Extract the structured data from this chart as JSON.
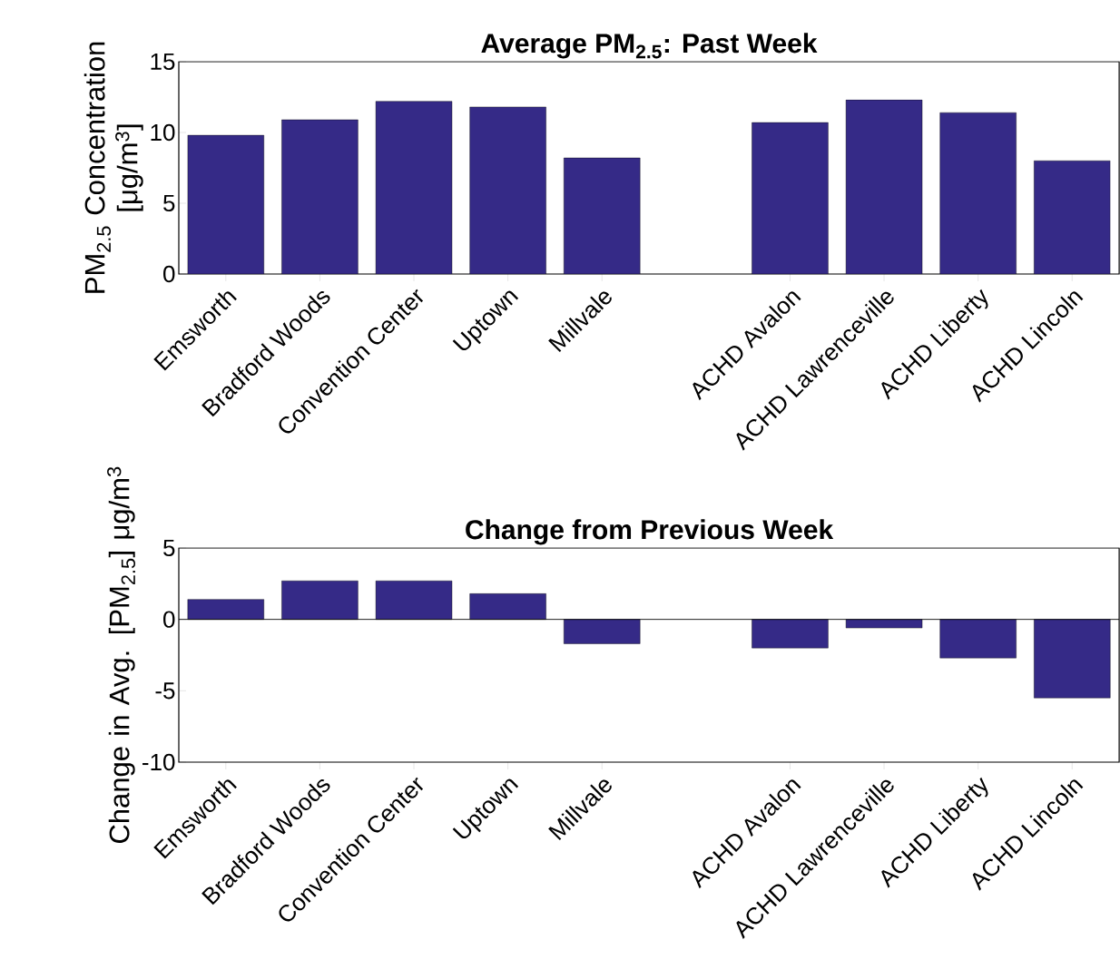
{
  "chart_data": [
    {
      "type": "bar",
      "title": "Average PM$_{2.5}$: Past Week",
      "ylabel": "PM$_{2.5}$ Concentration [μg/m$^{3}$]",
      "categories": [
        "Emsworth",
        "Bradford Woods",
        "Convention Center",
        "Uptown",
        "Millvale",
        null,
        "ACHD Avalon",
        "ACHD Lawrenceville",
        "ACHD Liberty",
        "ACHD Lincoln"
      ],
      "values": [
        9.8,
        10.9,
        12.2,
        11.8,
        8.2,
        null,
        10.7,
        12.3,
        11.4,
        8.0
      ],
      "color": "#352a87",
      "ylim": [
        0,
        15
      ],
      "yticks": [
        0,
        5,
        10,
        15
      ],
      "grid": false
    },
    {
      "type": "bar",
      "title": "Change from Previous Week",
      "ylabel": "Change in Avg. [PM$_{2.5}$] μg/m$^{3}$",
      "categories": [
        "Emsworth",
        "Bradford Woods",
        "Convention Center",
        "Uptown",
        "Millvale",
        null,
        "ACHD Avalon",
        "ACHD Lawrenceville",
        "ACHD Liberty",
        "ACHD Lincoln"
      ],
      "values": [
        1.4,
        2.7,
        2.7,
        1.8,
        -1.7,
        null,
        -2.0,
        -0.6,
        -2.7,
        -5.5
      ],
      "color": "#352a87",
      "ylim": [
        -10,
        5
      ],
      "yticks": [
        -10,
        -5,
        0,
        5
      ],
      "grid": false,
      "ref_lines": [
        {
          "axis": "y",
          "value": 0,
          "color": "#000000"
        }
      ]
    }
  ]
}
